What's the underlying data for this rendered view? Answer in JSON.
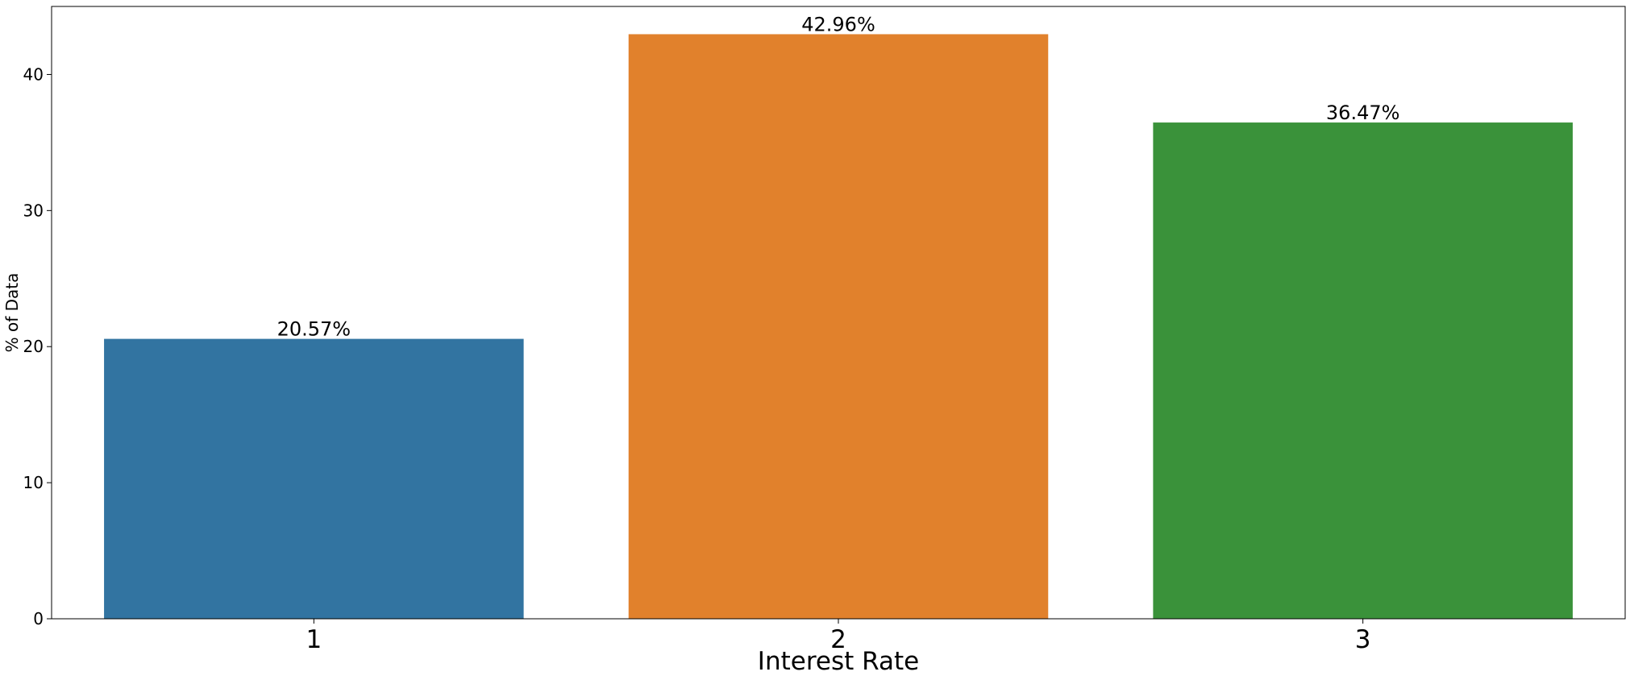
{
  "chart_data": {
    "type": "bar",
    "categories": [
      "1",
      "2",
      "3"
    ],
    "values": [
      20.57,
      42.96,
      36.47
    ],
    "data_labels": [
      "20.57%",
      "42.96%",
      "36.47%"
    ],
    "colors": [
      "#3274a1",
      "#e1812c",
      "#3a923a"
    ],
    "title": "",
    "xlabel": "Interest Rate",
    "ylabel": "% of Data",
    "ylim": [
      0,
      45
    ],
    "yticks": [
      0,
      10,
      20,
      30,
      40
    ],
    "grid": false,
    "legend": "none"
  }
}
